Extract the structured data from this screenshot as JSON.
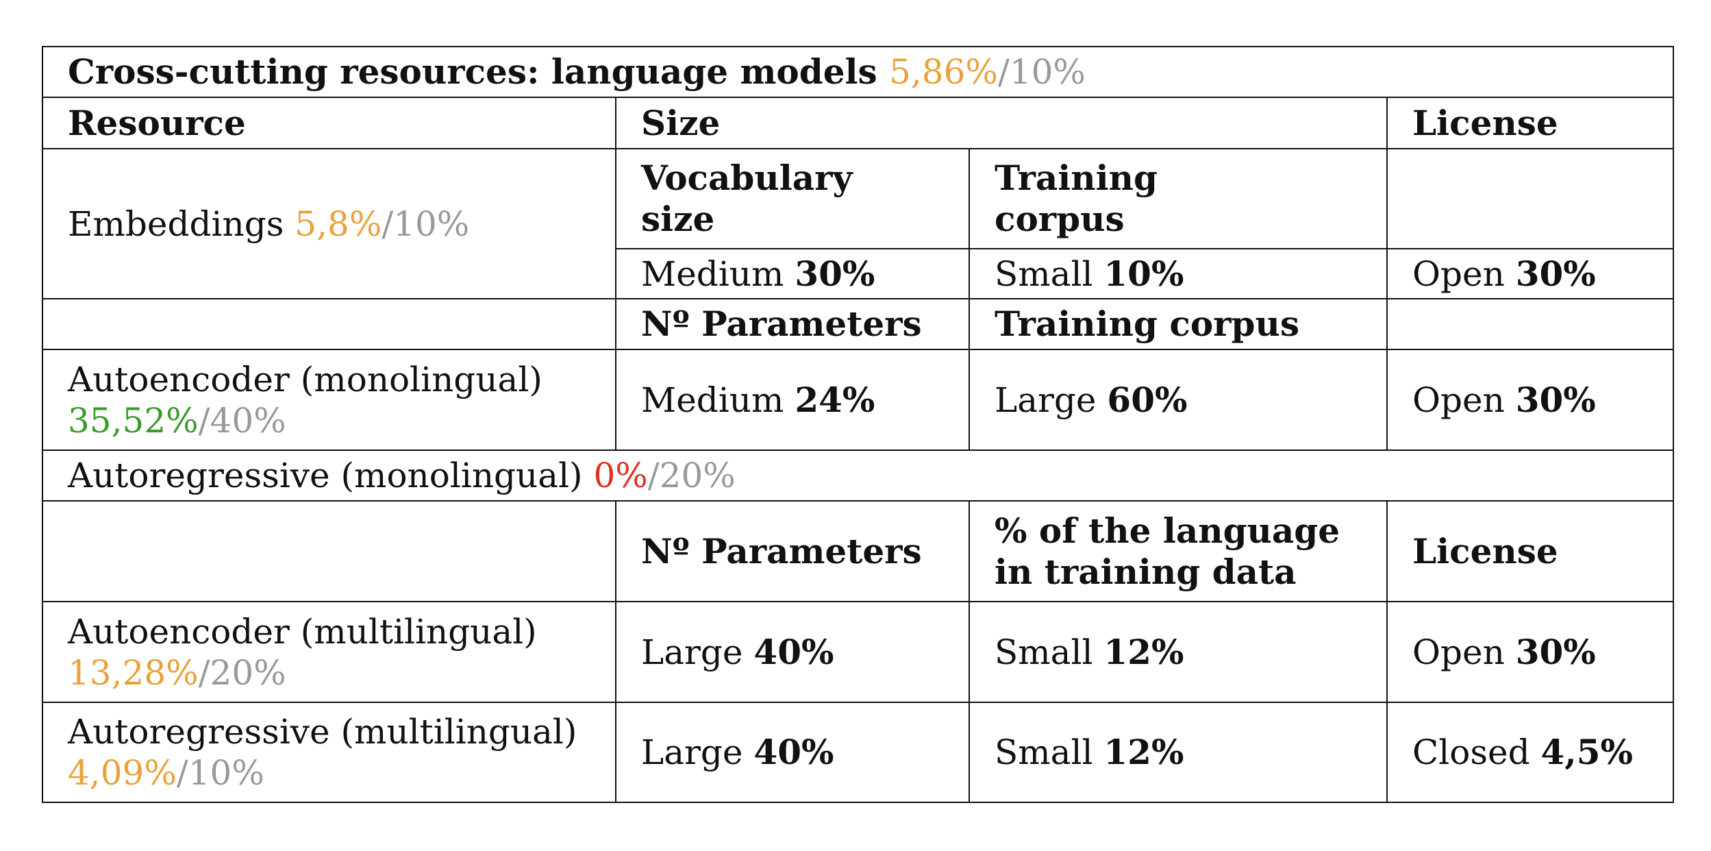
{
  "header": {
    "title": "Cross-cutting resources: language models",
    "score": "5,86%",
    "max": "/10%"
  },
  "columns": [
    "Resource",
    "Size",
    "License"
  ],
  "embeddings": {
    "name": "Embeddings",
    "score": "5,8%",
    "max": "/10%",
    "sub_headers": [
      "Vocabulary size",
      "Training corpus"
    ],
    "cells": [
      {
        "label": "Medium",
        "value": "30%"
      },
      {
        "label": "Small",
        "value": "10%"
      },
      {
        "label": "Open",
        "value": "30%"
      }
    ]
  },
  "autoencoder_mono": {
    "sub_headers": [
      "Nº Parameters",
      "Training corpus"
    ],
    "name": "Autoencoder (monolingual)",
    "score": "35,52%",
    "max": "/40%",
    "cells": [
      {
        "label": "Medium",
        "value": "24%"
      },
      {
        "label": "Large",
        "value": "60%"
      },
      {
        "label": "Open",
        "value": "30%"
      }
    ]
  },
  "autoregressive_mono": {
    "name": "Autoregressive (monolingual)",
    "score": "0%",
    "max": "/20%"
  },
  "multilingual_headers": [
    "Nº Parameters",
    "% of the language in training data",
    "License"
  ],
  "autoencoder_multi": {
    "name": "Autoencoder (multilingual)",
    "score": "13,28%",
    "max": "/20%",
    "cells": [
      {
        "label": "Large",
        "value": "40%"
      },
      {
        "label": "Small",
        "value": "12%"
      },
      {
        "label": "Open",
        "value": "30%"
      }
    ]
  },
  "autoregressive_multi": {
    "name": "Autoregressive (multilingual)",
    "score": "4,09%",
    "max": "/10%",
    "cells": [
      {
        "label": "Large",
        "value": "40%"
      },
      {
        "label": "Small",
        "value": "12%"
      },
      {
        "label": "Closed",
        "value": "4,5%"
      }
    ]
  }
}
